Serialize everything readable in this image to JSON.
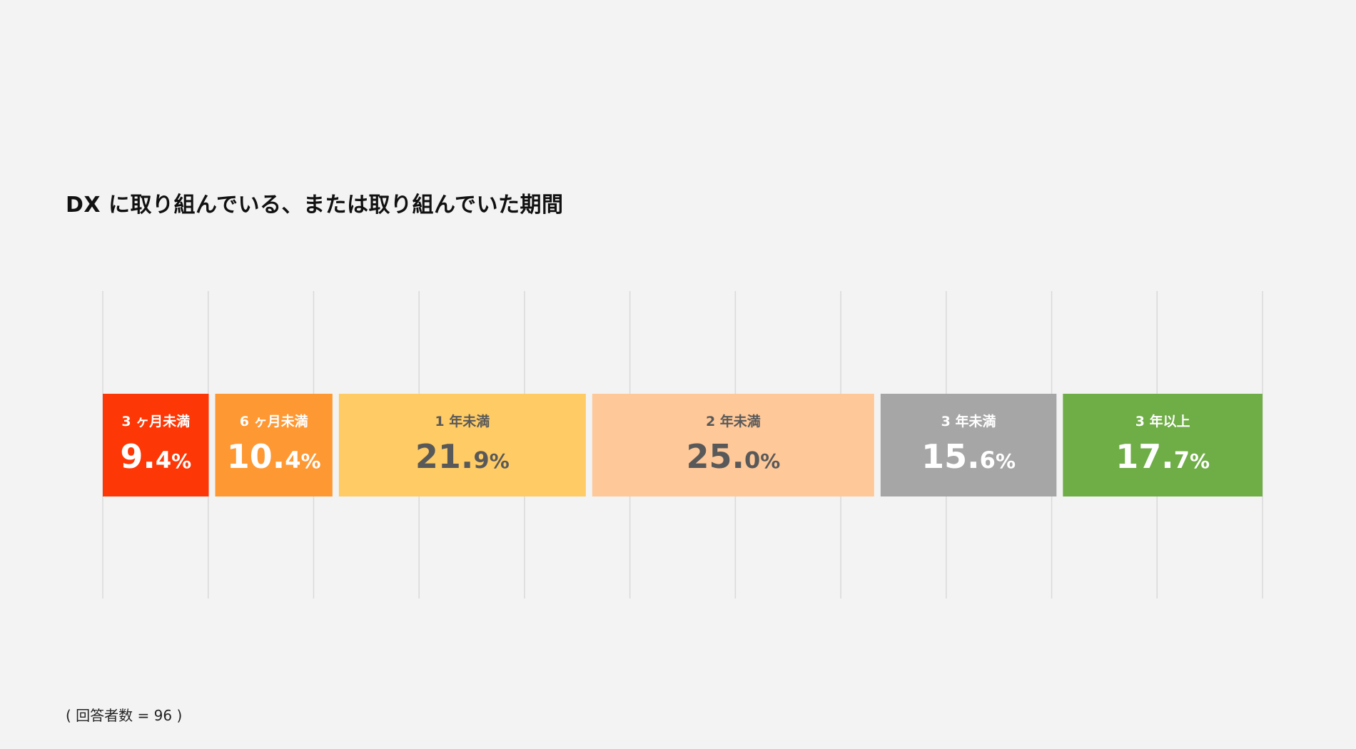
{
  "chart_data": {
    "type": "bar",
    "orientation": "horizontal-stacked",
    "title": "DX に取り組んでいる、または取り組んでいた期間",
    "xlim": [
      0,
      100
    ],
    "grid": true,
    "categories": [
      "3 ヶ月未満",
      "6 ヶ月未満",
      "1 年未満",
      "2 年未満",
      "3 年未満",
      "3 年以上"
    ],
    "values": [
      9.4,
      10.4,
      21.9,
      25.0,
      15.6,
      17.7
    ],
    "labels": [
      {
        "whole": "9.",
        "decimal": "4",
        "unit": "%"
      },
      {
        "whole": "10.",
        "decimal": "4",
        "unit": "%"
      },
      {
        "whole": "21.",
        "decimal": "9",
        "unit": "%"
      },
      {
        "whole": "25.",
        "decimal": "0",
        "unit": "%"
      },
      {
        "whole": "15.",
        "decimal": "6",
        "unit": "%"
      },
      {
        "whole": "17.",
        "decimal": "7",
        "unit": "%"
      }
    ],
    "colors": [
      "#fe3706",
      "#fe9833",
      "#fecb65",
      "#fec899",
      "#a6a6a6",
      "#6fad46"
    ],
    "text_colors": [
      "#ffffff",
      "#ffffff",
      "#595959",
      "#595959",
      "#ffffff",
      "#ffffff"
    ],
    "gridline_color": "#d9d9d9"
  },
  "footnote": {
    "open": "( ",
    "label": "回答者数",
    "equals": " = ",
    "count": "96",
    "close": " )"
  }
}
